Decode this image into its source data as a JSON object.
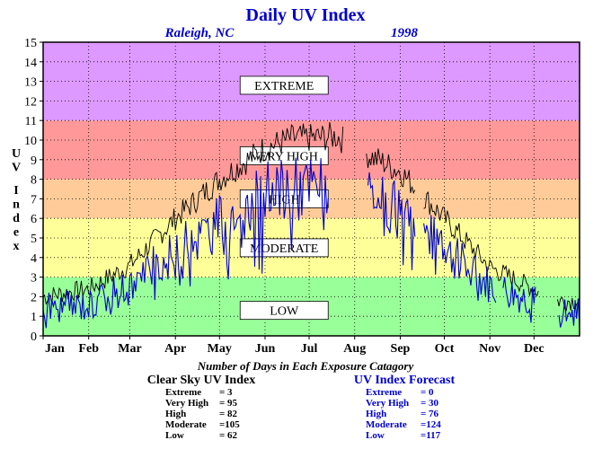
{
  "chart_data": {
    "type": "line",
    "title": "Daily UV Index",
    "subtitle_left": "Raleigh, NC",
    "subtitle_right": "1998",
    "ylabel": "UV Index",
    "ylim": [
      0,
      15
    ],
    "yticks": [
      "0",
      "1",
      "2",
      "3",
      "4",
      "5",
      "6",
      "7",
      "8",
      "9",
      "10",
      "11",
      "12",
      "13",
      "14",
      "15"
    ],
    "xlim": [
      0,
      365
    ],
    "months": [
      "Jan",
      "Feb",
      "Mar",
      "Apr",
      "May",
      "Jun",
      "Jul",
      "Aug",
      "Sep",
      "Oct",
      "Nov",
      "Dec"
    ],
    "month_starts": [
      0,
      31,
      59,
      90,
      120,
      151,
      181,
      212,
      243,
      273,
      304,
      334
    ],
    "grid": true,
    "bands": [
      {
        "label": "LOW",
        "from": 0,
        "to": 3,
        "color": "#99ff99"
      },
      {
        "label": "MODERATE",
        "from": 3,
        "to": 6,
        "color": "#ffff99"
      },
      {
        "label": "HIGH",
        "from": 6,
        "to": 8,
        "color": "#ffcc99"
      },
      {
        "label": "VERY HIGH",
        "from": 8,
        "to": 11,
        "color": "#ff9999"
      },
      {
        "label": "EXTREME",
        "from": 11,
        "to": 15,
        "color": "#dd99ff"
      }
    ],
    "band_label_values": [
      1.3,
      4.5,
      7.0,
      9.2,
      12.8
    ],
    "series": [
      {
        "name": "Clear Sky UV Index",
        "color": "#000000",
        "keypoints": [
          [
            0,
            2.0
          ],
          [
            31,
            2.4
          ],
          [
            59,
            3.6
          ],
          [
            90,
            6.0
          ],
          [
            120,
            8.0
          ],
          [
            151,
            9.6
          ],
          [
            170,
            10.1
          ],
          [
            181,
            10.1
          ],
          [
            200,
            10.2
          ],
          [
            212,
            9.6
          ],
          [
            243,
            8.4
          ],
          [
            273,
            6.0
          ],
          [
            304,
            3.5
          ],
          [
            334,
            2.4
          ],
          [
            348,
            1.8
          ],
          [
            365,
            1.8
          ]
        ],
        "gaps": [
          [
            205,
            219
          ],
          [
            254,
            258
          ],
          [
            338,
            349
          ]
        ]
      },
      {
        "name": "UV Index Forecast",
        "color": "#0000cc",
        "keypoints": [
          [
            0,
            1.4
          ],
          [
            31,
            1.6
          ],
          [
            59,
            2.6
          ],
          [
            90,
            4.3
          ],
          [
            120,
            5.8
          ],
          [
            151,
            7.2
          ],
          [
            170,
            7.6
          ],
          [
            181,
            7.6
          ],
          [
            200,
            7.8
          ],
          [
            212,
            7.0
          ],
          [
            243,
            6.3
          ],
          [
            273,
            4.4
          ],
          [
            304,
            2.6
          ],
          [
            334,
            1.8
          ],
          [
            348,
            1.2
          ],
          [
            365,
            1.2
          ]
        ],
        "gaps": [
          [
            195,
            206
          ],
          [
            208,
            220
          ],
          [
            254,
            258
          ],
          [
            309,
            312
          ],
          [
            336,
            350
          ]
        ]
      }
    ],
    "summary_title": "Number of Days in Each Exposure Catagory",
    "summary": [
      {
        "title": "Clear Sky UV Index",
        "color": "#000000",
        "rows": [
          {
            "label": "Extreme",
            "value": "=   3"
          },
          {
            "label": "Very High",
            "value": "= 95"
          },
          {
            "label": "High",
            "value": "= 82"
          },
          {
            "label": "Moderate",
            "value": "=105"
          },
          {
            "label": "Low",
            "value": "= 62"
          }
        ]
      },
      {
        "title": "UV Index Forecast",
        "color": "#0000cc",
        "rows": [
          {
            "label": "Extreme",
            "value": "=   0"
          },
          {
            "label": "Very High",
            "value": "= 30"
          },
          {
            "label": "High",
            "value": "= 76"
          },
          {
            "label": "Moderate",
            "value": "=124"
          },
          {
            "label": "Low",
            "value": "=117"
          }
        ]
      }
    ]
  }
}
